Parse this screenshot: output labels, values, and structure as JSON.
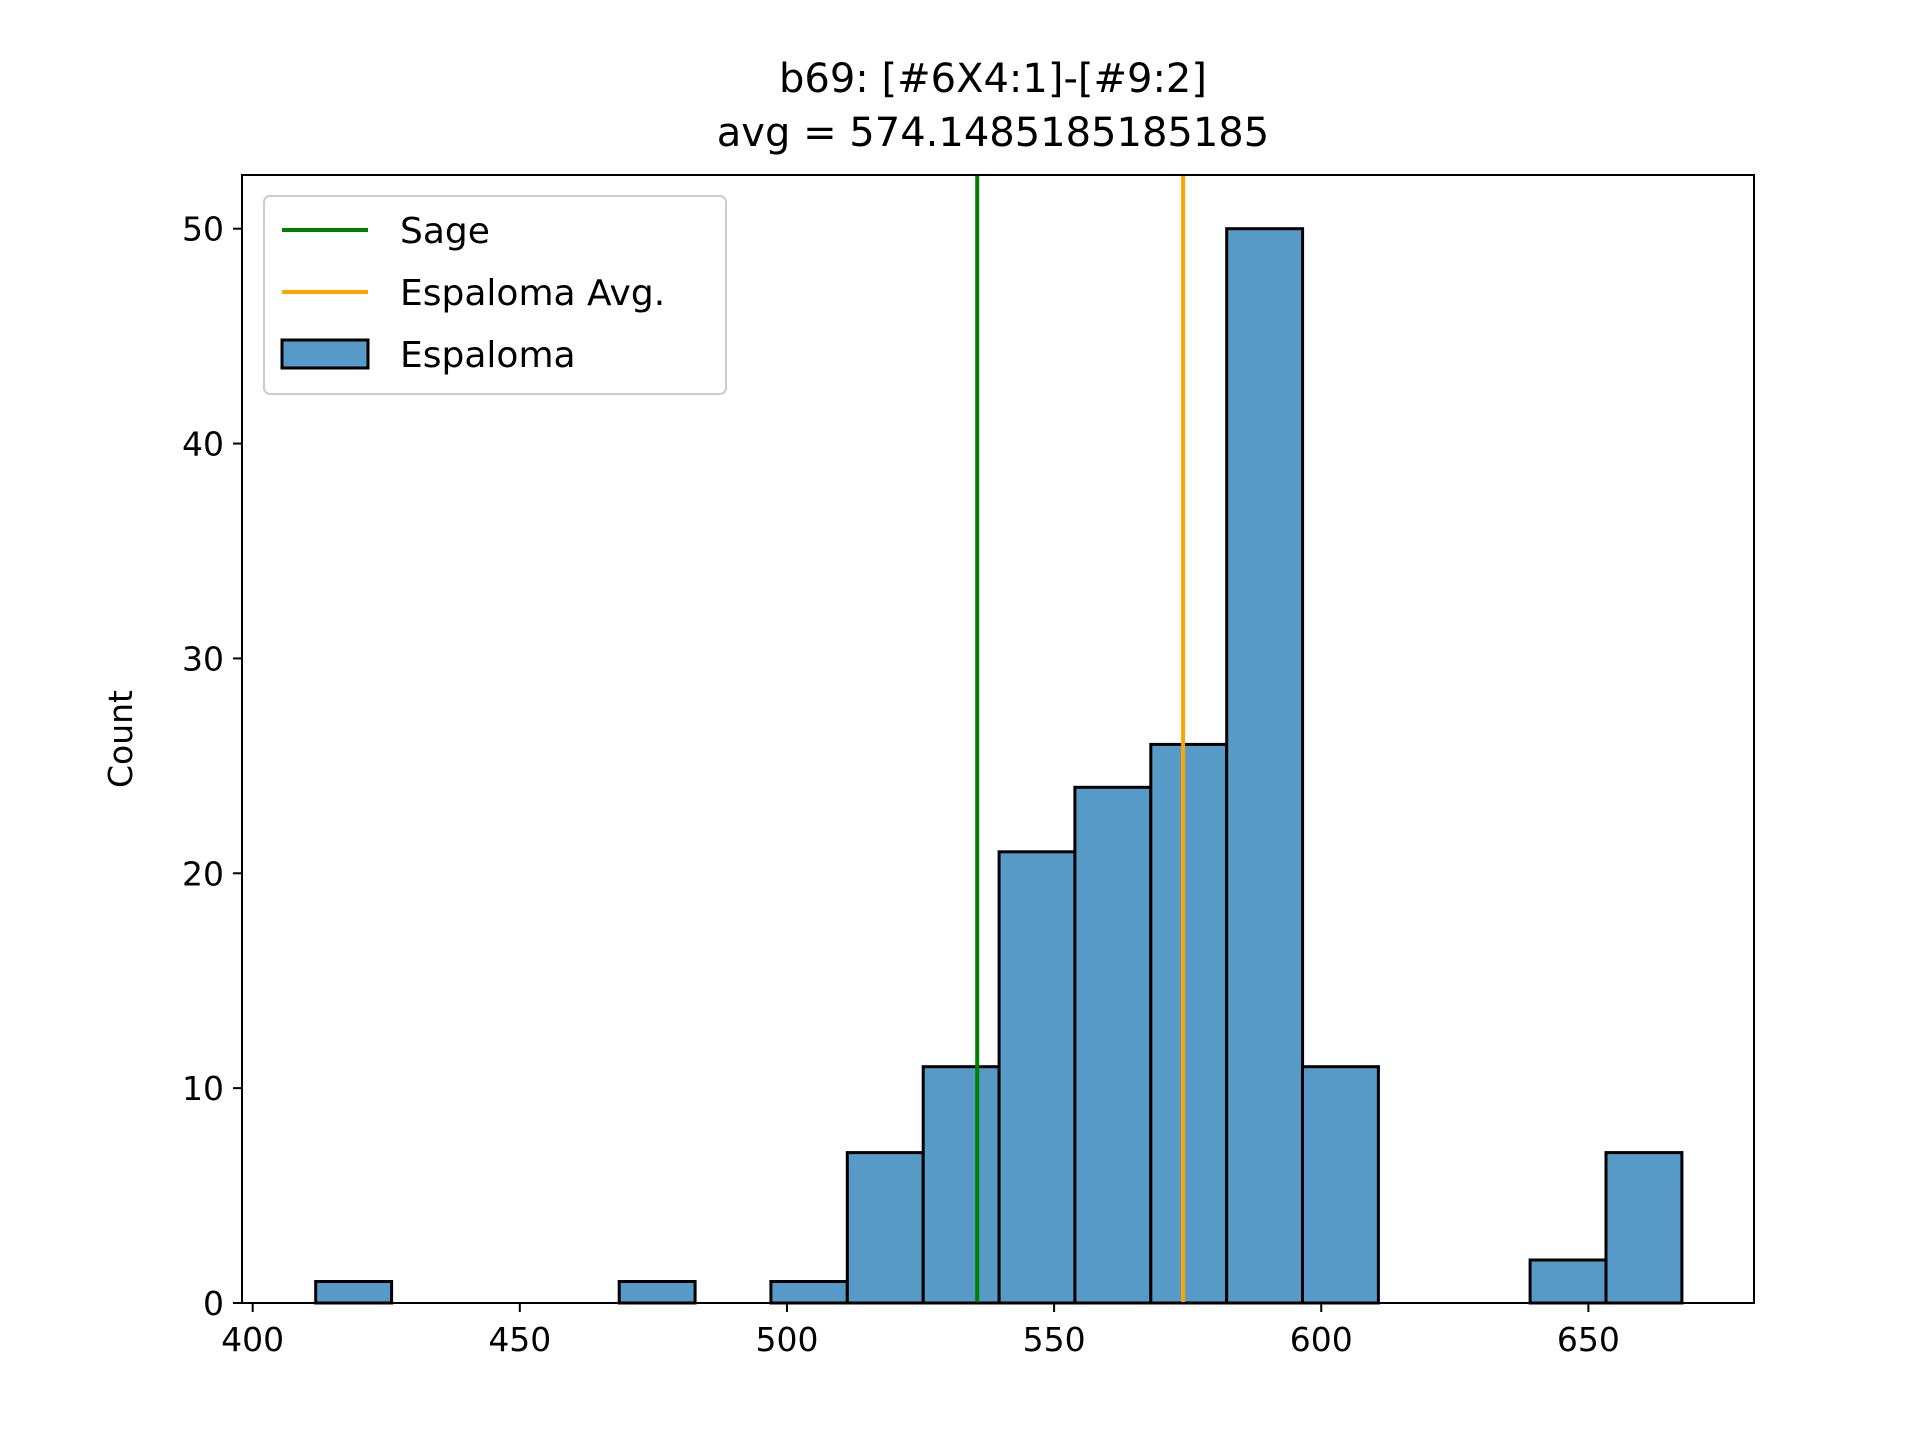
{
  "chart_data": {
    "type": "bar",
    "title": "b69: [#6X4:1]-[#9:2]",
    "subtitle": "avg = 574.1485185185185",
    "xlabel": "",
    "ylabel": "Count",
    "xlim": [
      398,
      681
    ],
    "ylim": [
      0,
      52.5
    ],
    "x_ticks": [
      400,
      450,
      500,
      550,
      600,
      650
    ],
    "y_ticks": [
      0,
      10,
      20,
      30,
      40,
      50
    ],
    "grid": false,
    "legend_position": "upper-left",
    "bins": [
      {
        "x0": 411.8,
        "x1": 426.0,
        "count": 1
      },
      {
        "x0": 426.0,
        "x1": 440.2,
        "count": 0
      },
      {
        "x0": 440.2,
        "x1": 454.4,
        "count": 0
      },
      {
        "x0": 454.4,
        "x1": 468.6,
        "count": 0
      },
      {
        "x0": 468.6,
        "x1": 482.8,
        "count": 1
      },
      {
        "x0": 482.8,
        "x1": 497.0,
        "count": 0
      },
      {
        "x0": 497.0,
        "x1": 511.3,
        "count": 1
      },
      {
        "x0": 511.3,
        "x1": 525.5,
        "count": 7
      },
      {
        "x0": 525.5,
        "x1": 539.7,
        "count": 11
      },
      {
        "x0": 539.7,
        "x1": 553.9,
        "count": 21
      },
      {
        "x0": 553.9,
        "x1": 568.1,
        "count": 24
      },
      {
        "x0": 568.1,
        "x1": 582.3,
        "count": 26
      },
      {
        "x0": 582.3,
        "x1": 596.5,
        "count": 50
      },
      {
        "x0": 596.5,
        "x1": 610.7,
        "count": 11
      },
      {
        "x0": 610.7,
        "x1": 624.9,
        "count": 0
      },
      {
        "x0": 624.9,
        "x1": 639.1,
        "count": 0
      },
      {
        "x0": 639.1,
        "x1": 653.3,
        "count": 2
      },
      {
        "x0": 653.3,
        "x1": 667.5,
        "count": 7
      }
    ],
    "vlines": [
      {
        "name": "Sage",
        "x": 535.6,
        "color": "#008000"
      },
      {
        "name": "Espaloma Avg.",
        "x": 574.1485185185185,
        "color": "#ffa500"
      }
    ],
    "histogram_series": {
      "name": "Espaloma",
      "color": "#5799c7",
      "edgecolor": "#000000"
    },
    "legend": [
      "Sage",
      "Espaloma Avg.",
      "Espaloma"
    ]
  }
}
